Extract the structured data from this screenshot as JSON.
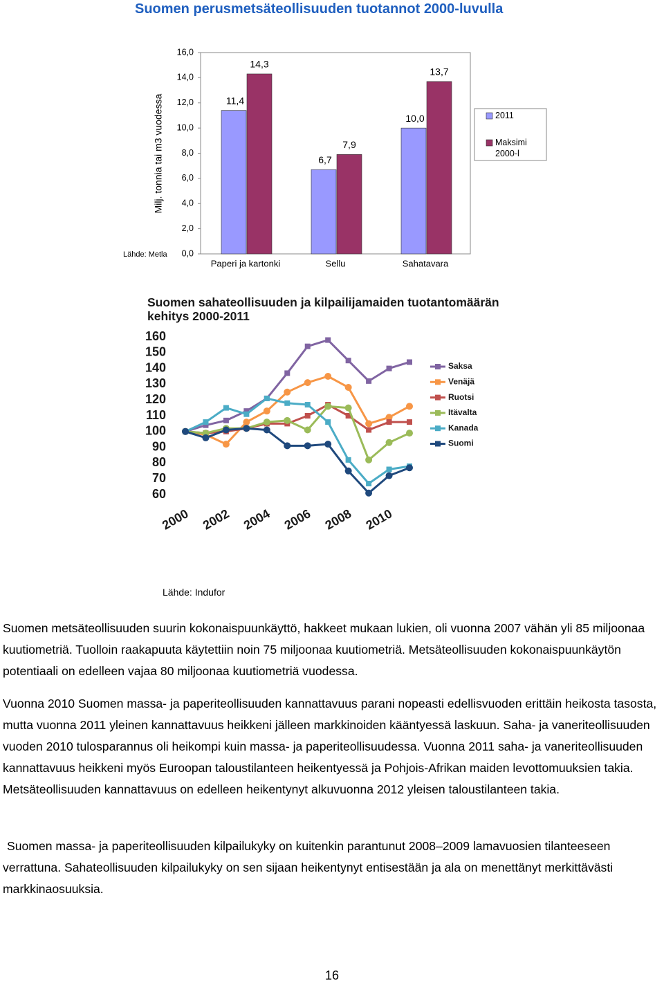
{
  "chart_data": [
    {
      "type": "bar",
      "title": "Suomen perusmetsäteollisuuden tuotannot 2000-luvulla",
      "y_label": "Milj. tonnia tai m3 vuodessa",
      "source": "Lähde: Metla",
      "categories": [
        "Paperi ja kartonki",
        "Sellu",
        "Sahatavara"
      ],
      "series": [
        {
          "name": "2011",
          "color": "#9999ff",
          "values": [
            11.4,
            6.7,
            10.0
          ],
          "value_labels": [
            "11,4",
            "6,7",
            "10,0"
          ]
        },
        {
          "name": "Maksimi 2000-l",
          "color": "#993366",
          "values": [
            14.3,
            7.9,
            13.7
          ],
          "value_labels": [
            "14,3",
            "7,9",
            "13,7"
          ]
        }
      ],
      "ylim": [
        0,
        16
      ],
      "yticks": [
        {
          "value": 0,
          "label": "0,0"
        },
        {
          "value": 2,
          "label": "2,0"
        },
        {
          "value": 4,
          "label": "4,0"
        },
        {
          "value": 6,
          "label": "6,0"
        },
        {
          "value": 8,
          "label": "8,0"
        },
        {
          "value": 10,
          "label": "10,0"
        },
        {
          "value": 12,
          "label": "12,0"
        },
        {
          "value": 14,
          "label": "14,0"
        },
        {
          "value": 16,
          "label": "16,0"
        }
      ],
      "legend": "right",
      "grid": false
    },
    {
      "type": "line",
      "title": "Suomen sahateollisuuden ja kilpailijamaiden tuotantomäärän kehitys 2000-2011",
      "x": [
        2000,
        2001,
        2002,
        2003,
        2004,
        2005,
        2006,
        2007,
        2008,
        2009,
        2010,
        2011
      ],
      "xlim": [
        2000,
        2011
      ],
      "xticks": [
        2000,
        2002,
        2004,
        2006,
        2008,
        2010
      ],
      "ylim": [
        60,
        160
      ],
      "yticks": [
        60,
        70,
        80,
        90,
        100,
        110,
        120,
        130,
        140,
        150,
        160
      ],
      "series": [
        {
          "name": "Saksa",
          "color": "#8064a2",
          "values": [
            100,
            104,
            107,
            113,
            121,
            137,
            154,
            158,
            145,
            132,
            140,
            144
          ]
        },
        {
          "name": "Venäjä",
          "color": "#f79646",
          "values": [
            100,
            98,
            92,
            106,
            113,
            125,
            131,
            135,
            128,
            105,
            109,
            116
          ]
        },
        {
          "name": "Ruotsi",
          "color": "#c0504d",
          "values": [
            100,
            99,
            100,
            102,
            105,
            105,
            110,
            117,
            110,
            101,
            106,
            106
          ]
        },
        {
          "name": "Itävalta",
          "color": "#9bbb59",
          "values": [
            100,
            99,
            102,
            102,
            106,
            107,
            101,
            116,
            115,
            82,
            93,
            99
          ]
        },
        {
          "name": "Kanada",
          "color": "#4bacc6",
          "values": [
            100,
            106,
            115,
            111,
            121,
            118,
            117,
            106,
            82,
            67,
            76,
            78
          ]
        },
        {
          "name": "Suomi",
          "color": "#1f497d",
          "values": [
            100,
            96,
            101,
            102,
            101,
            91,
            91,
            92,
            75,
            61,
            72,
            77
          ]
        }
      ],
      "legend": "right",
      "grid": false
    }
  ],
  "document": {
    "source": "Lähde: Indufor",
    "paragraphs": [
      "Suomen metsäteollisuuden suurin kokonaispuunkäyttö, hakkeet mukaan lukien, oli vuonna 2007 vähän yli 85 miljoonaa kuutiometriä. Tuolloin raakapuuta käytettiin noin 75 miljoonaa kuutiometriä. Metsäteollisuuden kokonaispuunkäytön potentiaali on edelleen vajaa 80 miljoonaa kuutiometriä vuodessa.",
      "Vuonna 2010 Suomen massa- ja paperiteollisuuden kannattavuus parani nopeasti edellisvuoden erittäin heikosta tasosta, mutta vuonna 2011 yleinen kannattavuus heikkeni jälleen markkinoiden kääntyessä laskuun. Saha- ja vaneriteollisuuden vuoden 2010 tulosparannus oli heikompi kuin massa- ja paperiteollisuudessa. Vuonna 2011 saha- ja vaneriteollisuuden kannattavuus heikkeni myös Euroopan taloustilanteen heikentyessä ja Pohjois-Afrikan maiden levottomuuksien takia. Metsäteollisuuden kannattavuus on edelleen heikentynyt alkuvuonna 2012 yleisen taloustilanteen takia.",
      "Suomen massa- ja paperiteollisuuden kilpailukyky on kuitenkin parantunut 2008–2009 lamavuosien tilanteeseen verrattuna. Sahateollisuuden kilpailukyky on sen sijaan heikentynyt entisestään ja ala on menettänyt merkittävästi markkinaosuuksia."
    ],
    "page_number": "16"
  }
}
